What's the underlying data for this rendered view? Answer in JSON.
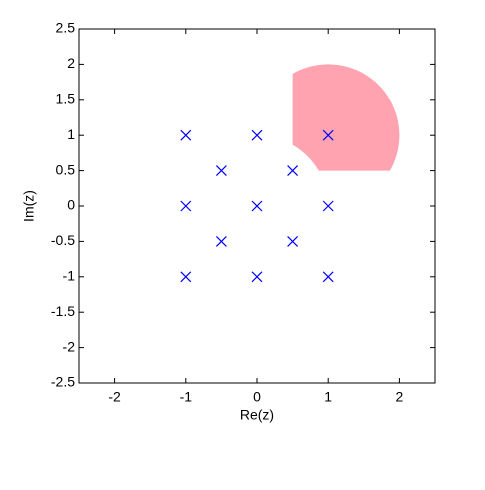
{
  "chart_data": {
    "type": "scatter",
    "xlabel": "Re(z)",
    "ylabel": "Im(z)",
    "series": [
      {
        "color": "#0000ff",
        "marker": "x",
        "x": [
          -1,
          0,
          1,
          -0.5,
          0.5,
          -1,
          0,
          1,
          -0.5,
          0.5,
          -1,
          0,
          1
        ],
        "values": [
          1,
          1,
          1,
          0.5,
          0.5,
          0,
          0,
          0,
          -0.5,
          -0.5,
          -1,
          -1,
          -1
        ]
      }
    ],
    "region": {
      "color": "#ffa3b1",
      "outer_center": [
        1,
        1
      ],
      "outer_radius": 1,
      "inner_radius": 1,
      "re_min": 0.5,
      "im_min": 0.5
    },
    "xlim": [
      -2.5,
      2.5
    ],
    "ylim": [
      -2.5,
      2.5
    ],
    "xticks": [
      -2,
      -1,
      0,
      1,
      2
    ],
    "yticks": [
      -2.5,
      -2,
      -1.5,
      -1,
      -0.5,
      0,
      0.5,
      1,
      1.5,
      2,
      2.5
    ]
  }
}
